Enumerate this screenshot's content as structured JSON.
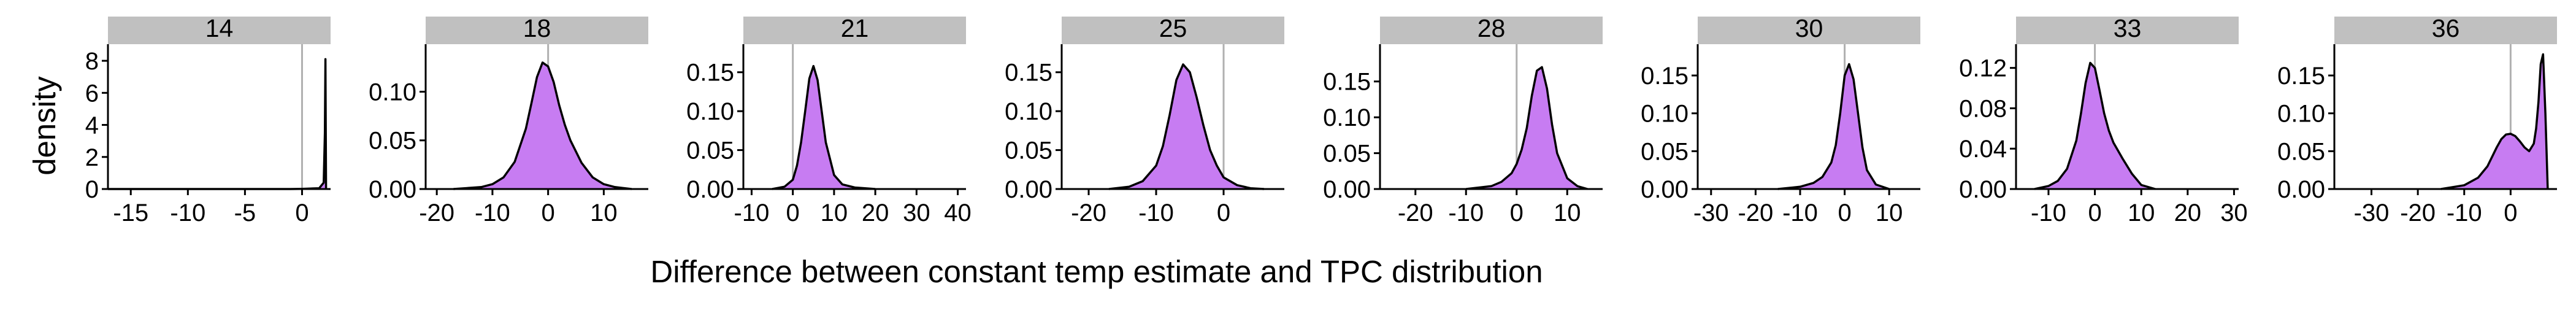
{
  "figure": {
    "ylabel": "density",
    "xlabel": "Difference between constant temp estimate and TPC distribution",
    "strip_fill": "#c0c0c0",
    "density_fill": "#c77cf2",
    "line_color": "#000000",
    "ref_line_color": "#b0b0b0"
  },
  "chart_data": [
    {
      "type": "area",
      "panel": "14",
      "ref_x": 0,
      "xlim": [
        -17,
        2.5
      ],
      "ylim": [
        0,
        8.5
      ],
      "xticks": [
        -15,
        -10,
        -5,
        0
      ],
      "xtick_labels": [
        "-15",
        "-10",
        "-5",
        "0"
      ],
      "yticks": [
        0,
        2,
        4,
        6,
        8
      ],
      "ytick_labels": [
        "0",
        "2",
        "4",
        "6",
        "8"
      ],
      "x": [
        -17,
        -10,
        -5,
        -1,
        0,
        1.5,
        1.9,
        2.0,
        2.05,
        2.1
      ],
      "y": [
        0,
        0,
        0,
        0,
        0.01,
        0.05,
        0.4,
        3.5,
        8.1,
        0
      ]
    },
    {
      "type": "area",
      "panel": "18",
      "ref_x": 0,
      "xlim": [
        -22,
        18
      ],
      "ylim": [
        0,
        0.14
      ],
      "xticks": [
        -20,
        -10,
        0,
        10
      ],
      "xtick_labels": [
        "-20",
        "-10",
        "0",
        "10"
      ],
      "yticks": [
        0,
        0.05,
        0.1
      ],
      "ytick_labels": [
        "0.00",
        "0.05",
        "0.10"
      ],
      "x": [
        -17,
        -12,
        -10,
        -8,
        -6,
        -4,
        -3,
        -2,
        -1,
        0,
        1,
        2,
        3,
        4,
        6,
        8,
        10,
        12,
        15
      ],
      "y": [
        0.0,
        0.002,
        0.005,
        0.012,
        0.028,
        0.062,
        0.088,
        0.115,
        0.13,
        0.126,
        0.11,
        0.086,
        0.066,
        0.05,
        0.027,
        0.012,
        0.005,
        0.002,
        0.0
      ]
    },
    {
      "type": "area",
      "panel": "21",
      "ref_x": 0,
      "xlim": [
        -12,
        42
      ],
      "ylim": [
        0,
        0.175
      ],
      "xticks": [
        -10,
        0,
        10,
        20,
        30,
        40
      ],
      "xtick_labels": [
        "-10",
        "0",
        "10",
        "20",
        "30",
        "40"
      ],
      "yticks": [
        0,
        0.05,
        0.1,
        0.15
      ],
      "ytick_labels": [
        "0.00",
        "0.05",
        "0.10",
        "0.15"
      ],
      "x": [
        -5,
        -2,
        0,
        1,
        2,
        3,
        4,
        5,
        6,
        7,
        8,
        10,
        12,
        15,
        20
      ],
      "y": [
        0.0,
        0.003,
        0.012,
        0.03,
        0.06,
        0.1,
        0.142,
        0.158,
        0.14,
        0.1,
        0.06,
        0.018,
        0.006,
        0.002,
        0.0
      ]
    },
    {
      "type": "area",
      "panel": "25",
      "ref_x": 0,
      "xlim": [
        -24,
        9
      ],
      "ylim": [
        0,
        0.175
      ],
      "xticks": [
        -20,
        -10,
        0
      ],
      "xtick_labels": [
        "-20",
        "-10",
        "0"
      ],
      "yticks": [
        0,
        0.05,
        0.1,
        0.15
      ],
      "ytick_labels": [
        "0.00",
        "0.05",
        "0.10",
        "0.15"
      ],
      "x": [
        -17,
        -14,
        -12,
        -10,
        -9,
        -8,
        -7,
        -6,
        -5,
        -4,
        -3,
        -2,
        -1,
        0,
        2,
        4,
        6
      ],
      "y": [
        0.0,
        0.003,
        0.01,
        0.03,
        0.055,
        0.095,
        0.14,
        0.16,
        0.15,
        0.118,
        0.082,
        0.05,
        0.03,
        0.015,
        0.005,
        0.001,
        0.0
      ]
    },
    {
      "type": "area",
      "panel": "28",
      "ref_x": 0,
      "xlim": [
        -27,
        17
      ],
      "ylim": [
        0,
        0.19
      ],
      "xticks": [
        -20,
        -10,
        0,
        10
      ],
      "xtick_labels": [
        "-20",
        "-10",
        "0",
        "10"
      ],
      "yticks": [
        0,
        0.05,
        0.1,
        0.15
      ],
      "ytick_labels": [
        "0.00",
        "0.05",
        "0.10",
        "0.15"
      ],
      "x": [
        -10,
        -5,
        -3,
        -1,
        0,
        1,
        2,
        3,
        4,
        5,
        6,
        7,
        8,
        10,
        12,
        14
      ],
      "y": [
        0.0,
        0.004,
        0.01,
        0.022,
        0.035,
        0.055,
        0.085,
        0.13,
        0.165,
        0.17,
        0.14,
        0.09,
        0.05,
        0.015,
        0.004,
        0.0
      ]
    },
    {
      "type": "area",
      "panel": "30",
      "ref_x": 0,
      "xlim": [
        -33,
        17
      ],
      "ylim": [
        0,
        0.18
      ],
      "xticks": [
        -30,
        -20,
        -10,
        0,
        10
      ],
      "xtick_labels": [
        "-30",
        "-20",
        "-10",
        "0",
        "10"
      ],
      "yticks": [
        0,
        0.05,
        0.1,
        0.15
      ],
      "ytick_labels": [
        "0.00",
        "0.05",
        "0.10",
        "0.15"
      ],
      "x": [
        -15,
        -10,
        -7,
        -5,
        -3,
        -2,
        -1,
        0,
        1,
        2,
        3,
        4,
        5,
        7,
        10
      ],
      "y": [
        0.0,
        0.003,
        0.008,
        0.016,
        0.035,
        0.058,
        0.1,
        0.15,
        0.165,
        0.145,
        0.1,
        0.055,
        0.025,
        0.006,
        0.0
      ]
    },
    {
      "type": "area",
      "panel": "33",
      "ref_x": 0,
      "xlim": [
        -17,
        31
      ],
      "ylim": [
        0,
        0.135
      ],
      "xticks": [
        -10,
        0,
        10,
        20,
        30
      ],
      "xtick_labels": [
        "-10",
        "0",
        "10",
        "20",
        "30"
      ],
      "yticks": [
        0,
        0.04,
        0.08,
        0.12
      ],
      "ytick_labels": [
        "0.00",
        "0.04",
        "0.08",
        "0.12"
      ],
      "x": [
        -13,
        -10,
        -8,
        -6,
        -4,
        -3,
        -2,
        -1,
        0,
        1,
        2,
        3,
        4,
        6,
        8,
        10,
        13
      ],
      "y": [
        0.0,
        0.003,
        0.008,
        0.02,
        0.048,
        0.075,
        0.105,
        0.125,
        0.12,
        0.098,
        0.075,
        0.058,
        0.046,
        0.03,
        0.015,
        0.004,
        0.0
      ]
    },
    {
      "type": "area",
      "panel": "36",
      "ref_x": 0,
      "xlim": [
        -38,
        10
      ],
      "ylim": [
        0,
        0.18
      ],
      "xticks": [
        -30,
        -20,
        -10,
        0
      ],
      "xtick_labels": [
        "-30",
        "-20",
        "-10",
        "0"
      ],
      "yticks": [
        0,
        0.05,
        0.1,
        0.15
      ],
      "ytick_labels": [
        "0.00",
        "0.05",
        "0.10",
        "0.15"
      ],
      "x": [
        -15,
        -10,
        -7,
        -5,
        -3,
        -2,
        -1,
        0,
        1,
        2,
        3,
        4,
        5,
        5.5,
        6,
        6.5,
        7,
        7.5,
        8
      ],
      "y": [
        0.0,
        0.005,
        0.015,
        0.03,
        0.055,
        0.066,
        0.072,
        0.073,
        0.07,
        0.063,
        0.055,
        0.05,
        0.06,
        0.08,
        0.115,
        0.165,
        0.178,
        0.1,
        0.0
      ]
    }
  ]
}
